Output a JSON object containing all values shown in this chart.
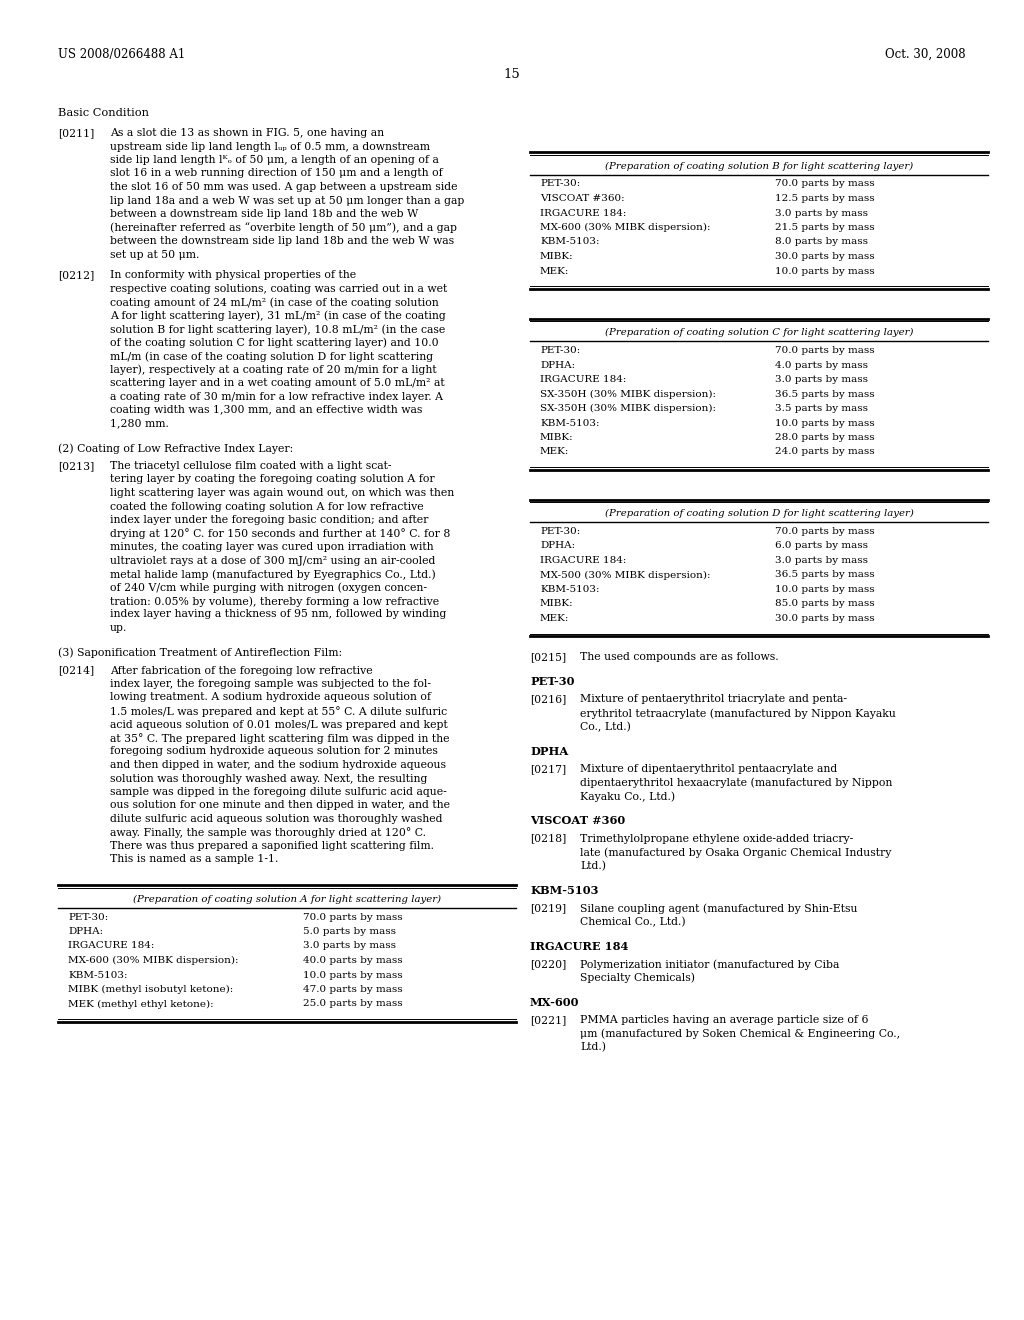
{
  "page_header_left": "US 2008/0266488 A1",
  "page_header_right": "Oct. 30, 2008",
  "page_number": "15",
  "table_B": {
    "title": "(Preparation of coating solution B for light scattering layer)",
    "rows": [
      [
        "PET-30:",
        "70.0 parts by mass"
      ],
      [
        "VISCOAT #360:",
        "12.5 parts by mass"
      ],
      [
        "IRGACURE 184:",
        "3.0 parts by mass"
      ],
      [
        "MX-600 (30% MIBK dispersion):",
        "21.5 parts by mass"
      ],
      [
        "KBM-5103:",
        "8.0 parts by mass"
      ],
      [
        "MIBK:",
        "30.0 parts by mass"
      ],
      [
        "MEK:",
        "10.0 parts by mass"
      ]
    ]
  },
  "table_C": {
    "title": "(Preparation of coating solution C for light scattering layer)",
    "rows": [
      [
        "PET-30:",
        "70.0 parts by mass"
      ],
      [
        "DPHA:",
        "4.0 parts by mass"
      ],
      [
        "IRGACURE 184:",
        "3.0 parts by mass"
      ],
      [
        "SX-350H (30% MIBK dispersion):",
        "36.5 parts by mass"
      ],
      [
        "SX-350H (30% MIBK dispersion):",
        "3.5 parts by mass"
      ],
      [
        "KBM-5103:",
        "10.0 parts by mass"
      ],
      [
        "MIBK:",
        "28.0 parts by mass"
      ],
      [
        "MEK:",
        "24.0 parts by mass"
      ]
    ]
  },
  "table_D": {
    "title": "(Preparation of coating solution D for light scattering layer)",
    "rows": [
      [
        "PET-30:",
        "70.0 parts by mass"
      ],
      [
        "DPHA:",
        "6.0 parts by mass"
      ],
      [
        "IRGACURE 184:",
        "3.0 parts by mass"
      ],
      [
        "MX-500 (30% MIBK dispersion):",
        "36.5 parts by mass"
      ],
      [
        "KBM-5103:",
        "10.0 parts by mass"
      ],
      [
        "MIBK:",
        "85.0 parts by mass"
      ],
      [
        "MEK:",
        "30.0 parts by mass"
      ]
    ]
  },
  "table_A": {
    "title": "(Preparation of coating solution A for light scattering layer)",
    "rows": [
      [
        "PET-30:",
        "70.0 parts by mass"
      ],
      [
        "DPHA:",
        "5.0 parts by mass"
      ],
      [
        "IRGACURE 184:",
        "3.0 parts by mass"
      ],
      [
        "MX-600 (30% MIBK dispersion):",
        "40.0 parts by mass"
      ],
      [
        "KBM-5103:",
        "10.0 parts by mass"
      ],
      [
        "MIBK (methyl isobutyl ketone):",
        "47.0 parts by mass"
      ],
      [
        "MEK (methyl ethyl ketone):",
        "25.0 parts by mass"
      ]
    ]
  },
  "left_sections": [
    {
      "type": "heading",
      "text": "Basic Condition"
    },
    {
      "type": "para",
      "tag": "[0211]",
      "lines": [
        "As a slot die 13 as shown in FIG. 5, one having an",
        "upstream side lip land length lᵤₚ of 0.5 mm, a downstream",
        "side lip land length lᴷₒ of 50 μm, a length of an opening of a",
        "slot 16 in a web running direction of 150 μm and a length of",
        "the slot 16 of 50 mm was used. A gap between a upstream side",
        "lip land 18a and a web W was set up at 50 μm longer than a gap",
        "between a downstream side lip land 18b and the web W",
        "(hereinafter referred as “overbite length of 50 μm”), and a gap",
        "between the downstream side lip land 18b and the web W was",
        "set up at 50 μm."
      ]
    },
    {
      "type": "para",
      "tag": "[0212]",
      "lines": [
        "In conformity with physical properties of the",
        "respective coating solutions, coating was carried out in a wet",
        "coating amount of 24 mL/m² (in case of the coating solution",
        "A for light scattering layer), 31 mL/m² (in case of the coating",
        "solution B for light scattering layer), 10.8 mL/m² (in the case",
        "of the coating solution C for light scattering layer) and 10.0",
        "mL/m (in case of the coating solution D for light scattering",
        "layer), respectively at a coating rate of 20 m/min for a light",
        "scattering layer and in a wet coating amount of 5.0 mL/m² at",
        "a coating rate of 30 m/min for a low refractive index layer. A",
        "coating width was 1,300 mm, and an effective width was",
        "1,280 mm."
      ]
    },
    {
      "type": "subhead",
      "text": "(2) Coating of Low Refractive Index Layer:"
    },
    {
      "type": "para",
      "tag": "[0213]",
      "lines": [
        "The triacetyl cellulose film coated with a light scat-",
        "tering layer by coating the foregoing coating solution A for",
        "light scattering layer was again wound out, on which was then",
        "coated the following coating solution A for low refractive",
        "index layer under the foregoing basic condition; and after",
        "drying at 120° C. for 150 seconds and further at 140° C. for 8",
        "minutes, the coating layer was cured upon irradiation with",
        "ultraviolet rays at a dose of 300 mJ/cm² using an air-cooled",
        "metal halide lamp (manufactured by Eyegraphics Co., Ltd.)",
        "of 240 V/cm while purging with nitrogen (oxygen concen-",
        "tration: 0.05% by volume), thereby forming a low refractive",
        "index layer having a thickness of 95 nm, followed by winding",
        "up."
      ]
    },
    {
      "type": "subhead",
      "text": "(3) Saponification Treatment of Antireflection Film:"
    },
    {
      "type": "para",
      "tag": "[0214]",
      "lines": [
        "After fabrication of the foregoing low refractive",
        "index layer, the foregoing sample was subjected to the fol-",
        "lowing treatment. A sodium hydroxide aqueous solution of",
        "1.5 moles/L was prepared and kept at 55° C. A dilute sulfuric",
        "acid aqueous solution of 0.01 moles/L was prepared and kept",
        "at 35° C. The prepared light scattering film was dipped in the",
        "foregoing sodium hydroxide aqueous solution for 2 minutes",
        "and then dipped in water, and the sodium hydroxide aqueous",
        "solution was thoroughly washed away. Next, the resulting",
        "sample was dipped in the foregoing dilute sulfuric acid aque-",
        "ous solution for one minute and then dipped in water, and the",
        "dilute sulfuric acid aqueous solution was thoroughly washed",
        "away. Finally, the sample was thoroughly dried at 120° C.",
        "There was thus prepared a saponified light scattering film.",
        "This is named as a sample 1-1."
      ]
    }
  ],
  "right_bottom_sections": [
    {
      "type": "para",
      "tag": "[0215]",
      "lines": [
        "The used compounds are as follows."
      ]
    },
    {
      "type": "subhead",
      "text": "PET-30"
    },
    {
      "type": "para",
      "tag": "[0216]",
      "lines": [
        "Mixture of pentaerythritol triacrylate and penta-",
        "erythritol tetraacrylate (manufactured by Nippon Kayaku",
        "Co., Ltd.)"
      ]
    },
    {
      "type": "subhead",
      "text": "DPHA"
    },
    {
      "type": "para",
      "tag": "[0217]",
      "lines": [
        "Mixture of dipentaerythritol pentaacrylate and",
        "dipentaerythritol hexaacrylate (manufactured by Nippon",
        "Kayaku Co., Ltd.)"
      ]
    },
    {
      "type": "subhead",
      "text": "VISCOAT #360"
    },
    {
      "type": "para",
      "tag": "[0218]",
      "lines": [
        "Trimethylolpropane ethylene oxide-added triacry-",
        "late (manufactured by Osaka Organic Chemical Industry",
        "Ltd.)"
      ]
    },
    {
      "type": "subhead",
      "text": "KBM-5103"
    },
    {
      "type": "para",
      "tag": "[0219]",
      "lines": [
        "Silane coupling agent (manufactured by Shin-Etsu",
        "Chemical Co., Ltd.)"
      ]
    },
    {
      "type": "subhead",
      "text": "IRGACURE 184"
    },
    {
      "type": "para",
      "tag": "[0220]",
      "lines": [
        "Polymerization initiator (manufactured by Ciba",
        "Specialty Chemicals)"
      ]
    },
    {
      "type": "subhead",
      "text": "MX-600"
    },
    {
      "type": "para",
      "tag": "[0221]",
      "lines": [
        "PMMA particles having an average particle size of 6",
        "μm (manufactured by Soken Chemical & Engineering Co.,",
        "Ltd.)"
      ]
    }
  ]
}
